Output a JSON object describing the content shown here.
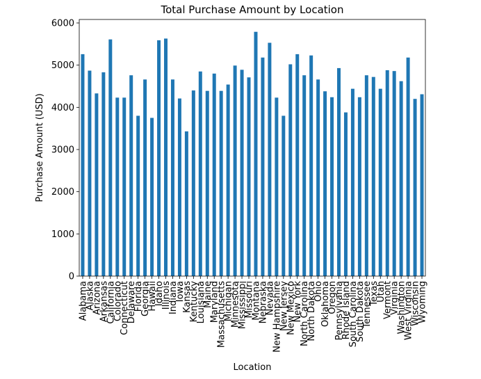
{
  "chart_data": {
    "type": "bar",
    "title": "Total Purchase Amount by Location",
    "xlabel": "Location",
    "ylabel": "Purchase Amount (USD)",
    "ylim": [
      0,
      6000
    ],
    "yticks": [
      0,
      1000,
      2000,
      3000,
      4000,
      5000,
      6000
    ],
    "grid": false,
    "bar_color": "#1f77b4",
    "categories": [
      "Alabama",
      "Alaska",
      "Arizona",
      "Arkansas",
      "California",
      "Colorado",
      "Connecticut",
      "Delaware",
      "Florida",
      "Georgia",
      "Hawaii",
      "Idaho",
      "Illinois",
      "Indiana",
      "Iowa",
      "Kansas",
      "Kentucky",
      "Louisiana",
      "Maine",
      "Maryland",
      "Massachusetts",
      "Michigan",
      "Minnesota",
      "Mississippi",
      "Missouri",
      "Montana",
      "Nebraska",
      "Nevada",
      "New Hampshire",
      "New Jersey",
      "New Mexico",
      "New York",
      "North Carolina",
      "North Dakota",
      "Ohio",
      "Oklahoma",
      "Oregon",
      "Pennsylvania",
      "Rhode Island",
      "South Carolina",
      "South Dakota",
      "Tennessee",
      "Texas",
      "Utah",
      "Vermont",
      "Virginia",
      "Washington",
      "West Virginia",
      "Wisconsin",
      "Wyoming"
    ],
    "values": [
      5260,
      4870,
      4330,
      4830,
      5610,
      4230,
      4230,
      4760,
      3800,
      4660,
      3750,
      5590,
      5630,
      4660,
      4210,
      3430,
      4400,
      4850,
      4390,
      4800,
      4390,
      4540,
      4990,
      4890,
      4710,
      5790,
      5180,
      5530,
      4230,
      3800,
      5020,
      5260,
      4760,
      5230,
      4660,
      4380,
      4240,
      4930,
      3880,
      4440,
      4240,
      4760,
      4720,
      4440,
      4880,
      4860,
      4620,
      5180,
      4200,
      4310
    ]
  }
}
